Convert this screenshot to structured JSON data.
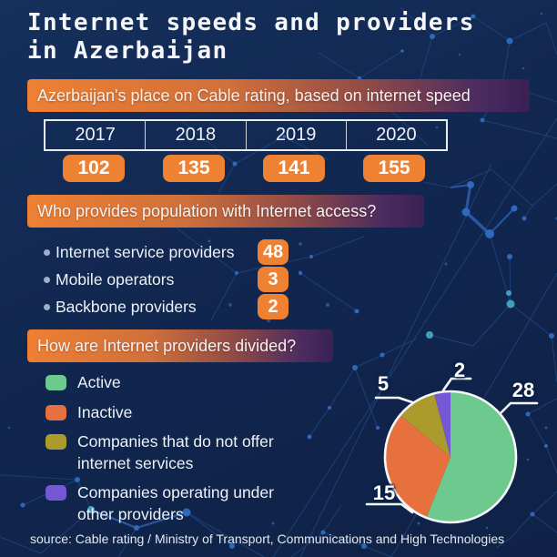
{
  "title": {
    "line1": "Internet speeds and providers",
    "line2": "in Azerbaijan"
  },
  "sections": {
    "rating": {
      "banner": "Azerbaijan's place on Cable rating, based on internet speed"
    },
    "providers": {
      "banner": "Who provides population with Internet access?",
      "items": [
        {
          "label": "Internet service providers",
          "value": "48"
        },
        {
          "label": "Mobile operators",
          "value": "3"
        },
        {
          "label": "Backbone providers",
          "value": "2"
        }
      ]
    },
    "division": {
      "banner": "How are Internet providers divided?"
    }
  },
  "source": "source: Cable rating / Ministry of Transport, Communications and High Technologies",
  "colors": {
    "background": "#10234a",
    "accent_orange": "#ef8232",
    "banner_gradient_start": "#ee8033",
    "banner_gradient_end": "#3a2153",
    "text": "#eef2f8",
    "pie_outline": "#f5f7fa"
  },
  "chart_data": [
    {
      "type": "table",
      "title": "Azerbaijan's place on Cable rating, based on internet speed",
      "categories": [
        "2017",
        "2018",
        "2019",
        "2020"
      ],
      "values": [
        102,
        135,
        141,
        155
      ]
    },
    {
      "type": "pie",
      "title": "How are Internet providers divided?",
      "labels": [
        "Active",
        "Inactive",
        "Companies that do not offer internet services",
        "Companies operating under other providers"
      ],
      "values": [
        28,
        15,
        5,
        2
      ],
      "colors": [
        "#6dc98e",
        "#e7703f",
        "#ab9b2c",
        "#7458d6"
      ],
      "start_angle_deg": 0,
      "direction": "clockwise",
      "legend_position": "left"
    }
  ]
}
